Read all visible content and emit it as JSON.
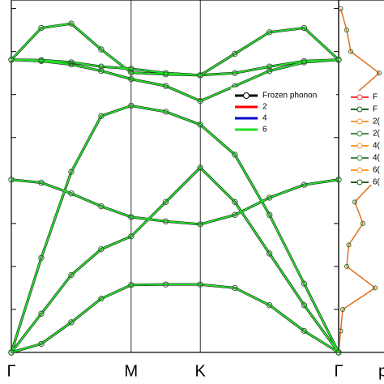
{
  "chart_data": {
    "type": "line",
    "categories": [
      "Γ",
      "M",
      "K",
      "Γ"
    ],
    "category_x": [
      0,
      1,
      1.577,
      2.732
    ],
    "x": [
      0,
      0.25,
      0.5,
      0.75,
      1,
      1.289,
      1.577,
      1.866,
      2.155,
      2.444,
      2.732
    ],
    "branches": [
      [
        0,
        0.2,
        0.7,
        1.25,
        1.57,
        1.58,
        1.58,
        1.5,
        1.1,
        0.5,
        0
      ],
      [
        0,
        0.9,
        1.8,
        2.4,
        2.7,
        3.5,
        4.3,
        3.5,
        2.3,
        1.1,
        0
      ],
      [
        4.02,
        3.95,
        3.7,
        3.4,
        3.15,
        3.05,
        2.98,
        3.2,
        3.6,
        3.9,
        4.02
      ],
      [
        0,
        2.2,
        4.2,
        5.5,
        5.74,
        5.6,
        5.3,
        4.6,
        3.2,
        1.6,
        0
      ],
      [
        6.81,
        7.55,
        7.65,
        7.05,
        6.51,
        6.47,
        6.45,
        6.95,
        7.45,
        7.55,
        6.81
      ],
      [
        6.81,
        6.78,
        6.7,
        6.55,
        6.36,
        6.2,
        5.85,
        6.2,
        6.55,
        6.75,
        6.81
      ],
      [
        6.81,
        6.8,
        6.75,
        6.65,
        6.6,
        6.5,
        6.45,
        6.5,
        6.65,
        6.78,
        6.81
      ]
    ],
    "series": [
      {
        "name": "Frozen phonon",
        "color": "#000000"
      },
      {
        "name": "2",
        "color": "#ff0000"
      },
      {
        "name": "4",
        "color": "#0000cc"
      },
      {
        "name": "6",
        "color": "#22dd22"
      }
    ],
    "xlim": [
      0,
      2.732
    ],
    "ylim": [
      0,
      8.2
    ],
    "yticks": [
      0,
      1,
      2,
      3,
      4,
      5,
      6,
      7,
      8
    ],
    "dos": {
      "y": [
        0,
        0.5,
        1,
        1.5,
        2,
        2.5,
        3,
        3.5,
        4,
        4.5,
        5,
        5.5,
        6,
        6.5,
        7,
        7.5,
        8
      ],
      "values": [
        0,
        0.05,
        0.1,
        0.9,
        0.2,
        0.25,
        0.6,
        0.4,
        0.9,
        0.3,
        0.35,
        0.5,
        0.4,
        1.0,
        0.3,
        0.2,
        0.05
      ],
      "xlim": [
        0,
        1.2
      ],
      "xlabel": "p",
      "legend": [
        {
          "name": "F",
          "color": "#ff3333"
        },
        {
          "name": "F",
          "color": "#226622"
        },
        {
          "name": "2(",
          "color": "#ff9933"
        },
        {
          "name": "2(",
          "color": "#448844"
        },
        {
          "name": "4(",
          "color": "#ff9933"
        },
        {
          "name": "4(",
          "color": "#448844"
        },
        {
          "name": "6(",
          "color": "#ff9933"
        },
        {
          "name": "6(",
          "color": "#226622"
        }
      ]
    }
  }
}
